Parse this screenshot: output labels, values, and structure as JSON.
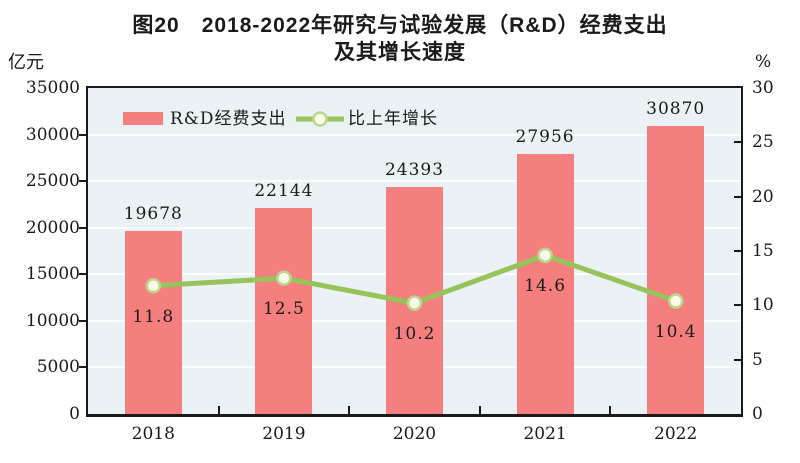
{
  "title": {
    "line1": "图20　2018-2022年研究与试验发展（R&D）经费支出",
    "line2": "及其增长速度"
  },
  "axes": {
    "left_unit": "亿元",
    "right_unit": "%"
  },
  "legend": [
    {
      "label": "R&D经费支出",
      "type": "bar"
    },
    {
      "label": "比上年增长",
      "type": "line"
    }
  ],
  "chart_data": {
    "type": "bar",
    "title": "图20 2018-2022年研究与试验发展（R&D）经费支出及其增长速度",
    "categories": [
      "2018",
      "2019",
      "2020",
      "2021",
      "2022"
    ],
    "series": [
      {
        "name": "R&D经费支出",
        "type": "bar",
        "axis": "left",
        "values": [
          19678,
          22144,
          24393,
          27956,
          30870
        ]
      },
      {
        "name": "比上年增长",
        "type": "line",
        "axis": "right",
        "values": [
          11.8,
          12.5,
          10.2,
          14.6,
          10.4
        ]
      }
    ],
    "ylabel_left": "亿元",
    "ylabel_right": "%",
    "ylim_left": [
      0,
      35000
    ],
    "ytick_step_left": 5000,
    "ylim_right": [
      0,
      30
    ],
    "ytick_step_right": 5,
    "grid": true,
    "legend_position": "top-inside"
  },
  "colors": {
    "bar": "#F57F7F",
    "line": "#97C35B",
    "marker_fill": "#FCFCEA",
    "marker_stroke": "#BCD68C",
    "plot_bg": "#EAF2F6",
    "grid": "#FBFDFE",
    "axis": "#1A1A1A",
    "text": "#1A1A1A"
  }
}
